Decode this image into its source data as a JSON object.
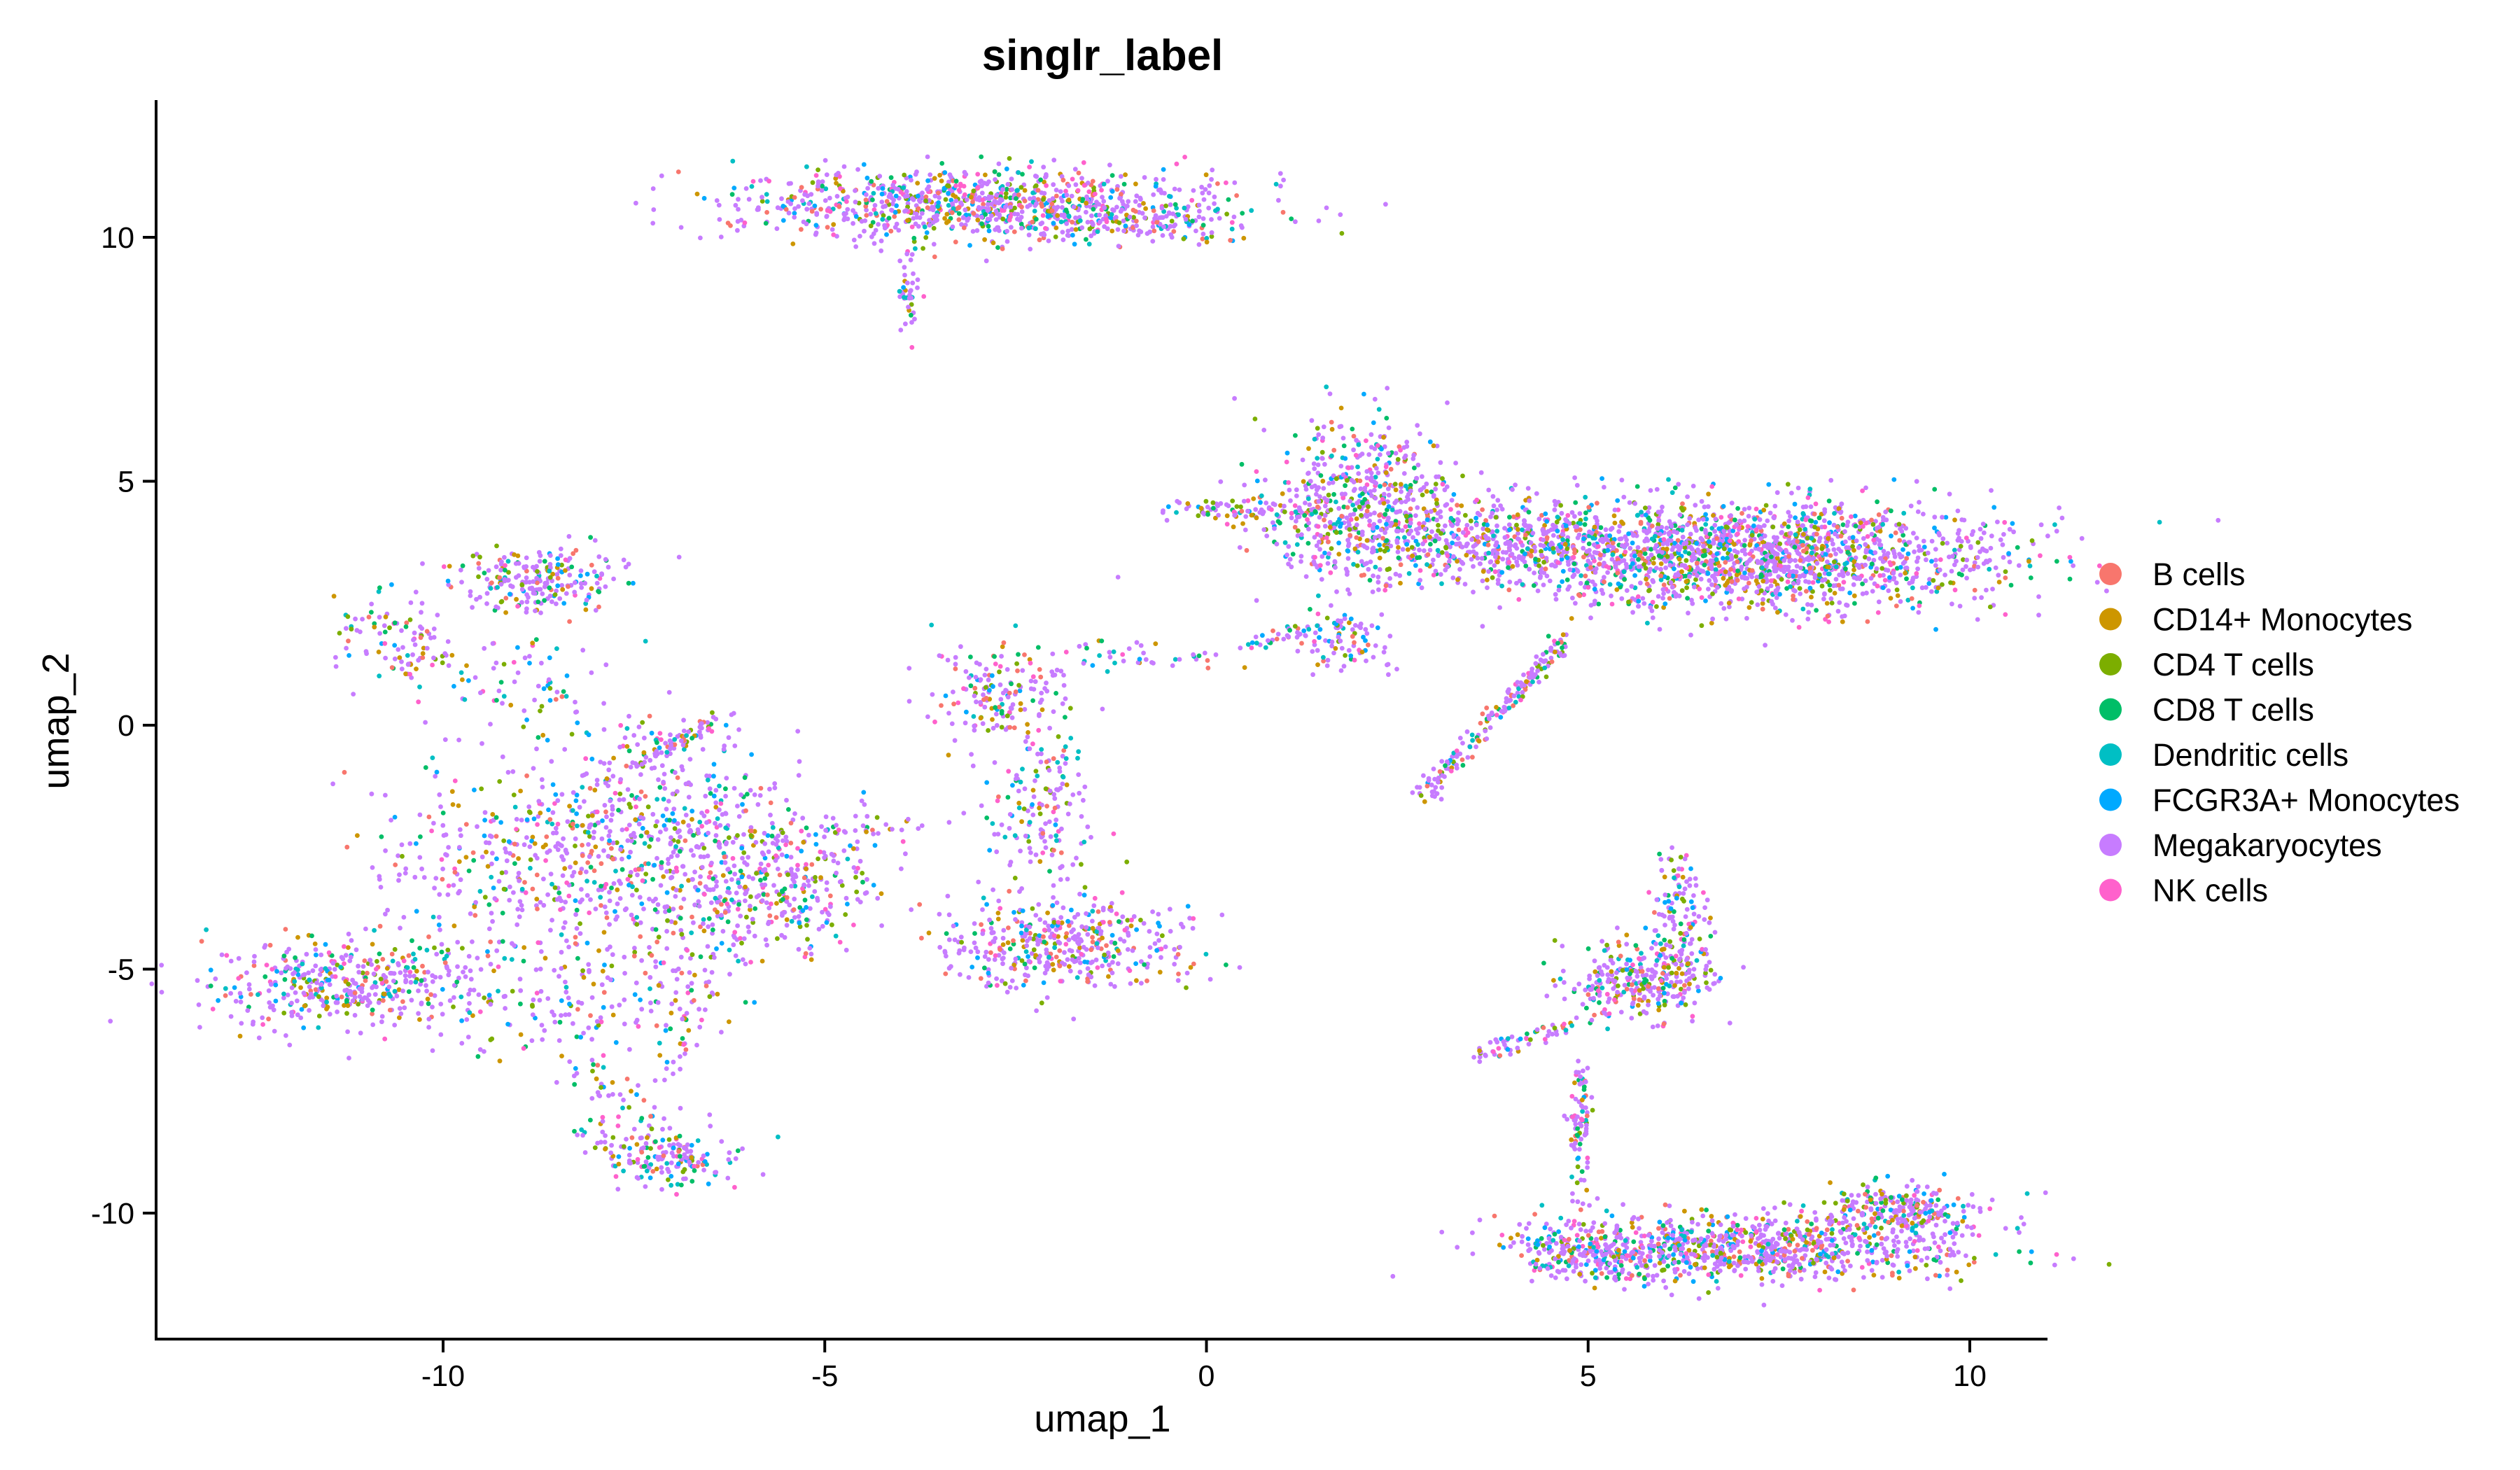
{
  "chart_data": {
    "type": "scatter",
    "title": "singlr_label",
    "xlabel": "umap_1",
    "ylabel": "umap_2",
    "xlim": [
      -14,
      11.5
    ],
    "ylim": [
      -12.5,
      12.8
    ],
    "x_ticks": [
      -10,
      -5,
      0,
      5,
      10
    ],
    "y_ticks": [
      -10,
      -5,
      0,
      5,
      10
    ],
    "x_tick_labels": [
      "-10",
      "-5",
      "0",
      "5",
      "10"
    ],
    "y_tick_labels": [
      "-10",
      "-5",
      "0",
      "5",
      "10"
    ],
    "grid": false,
    "legend_position": "right",
    "series": [
      {
        "name": "B cells",
        "color": "#F8766D"
      },
      {
        "name": "CD14+ Monocytes",
        "color": "#CD9600"
      },
      {
        "name": "CD4 T cells",
        "color": "#7CAE00"
      },
      {
        "name": "CD8 T cells",
        "color": "#00BE67"
      },
      {
        "name": "Dendritic cells",
        "color": "#00BFC4"
      },
      {
        "name": "FCGR3A+ Monocytes",
        "color": "#00A9FF"
      },
      {
        "name": "Megakaryocytes",
        "color": "#C77CFF"
      },
      {
        "name": "NK cells",
        "color": "#FF61CC"
      }
    ],
    "clusters": [
      {
        "cx": -3.0,
        "cy": 10.7,
        "sx": 1.6,
        "sy": 0.35,
        "n": 900
      },
      {
        "cx": -3.9,
        "cy": 9.0,
        "sx": 0.07,
        "sy": 0.5,
        "n": 40
      },
      {
        "cx": -1.2,
        "cy": 10.3,
        "sx": 0.9,
        "sy": 0.22,
        "n": 180
      },
      {
        "cx": 7.2,
        "cy": 3.5,
        "sx": 1.6,
        "sy": 0.55,
        "n": 1700
      },
      {
        "cx": 3.6,
        "cy": 3.8,
        "sx": 1.4,
        "sy": 0.45,
        "n": 700
      },
      {
        "cx": 2.0,
        "cy": 4.7,
        "sx": 0.6,
        "sy": 0.8,
        "n": 450
      },
      {
        "cx": 0.3,
        "cy": 4.45,
        "sx": 0.5,
        "sy": 0.08,
        "n": 70
      },
      {
        "cx": 1.8,
        "cy": 1.7,
        "sx": 0.3,
        "sy": 0.35,
        "n": 80
      },
      {
        "cx": 7.2,
        "cy": -10.7,
        "sx": 1.4,
        "sy": 0.35,
        "n": 900
      },
      {
        "cx": 9.1,
        "cy": -9.9,
        "sx": 0.5,
        "sy": 0.25,
        "n": 220
      },
      {
        "cx": 5.0,
        "cy": -10.8,
        "sx": 0.5,
        "sy": 0.25,
        "n": 200
      },
      {
        "cx": 4.9,
        "cy": -8.3,
        "sx": 0.07,
        "sy": 0.8,
        "n": 90
      },
      {
        "cx": 5.7,
        "cy": -5.2,
        "sx": 0.5,
        "sy": 0.4,
        "n": 320
      },
      {
        "cx": 6.2,
        "cy": -3.8,
        "sx": 0.18,
        "sy": 0.6,
        "n": 120
      },
      {
        "cx": -1.8,
        "cy": -4.5,
        "sx": 0.8,
        "sy": 0.45,
        "n": 420
      },
      {
        "cx": -2.7,
        "cy": 0.7,
        "sx": 0.45,
        "sy": 0.55,
        "n": 160
      },
      {
        "cx": -2.2,
        "cy": -1.8,
        "sx": 0.35,
        "sy": 1.0,
        "n": 170
      },
      {
        "cx": -1.0,
        "cy": 1.4,
        "sx": 0.8,
        "sy": 0.15,
        "n": 40
      },
      {
        "cx": -8.8,
        "cy": 3.0,
        "sx": 0.5,
        "sy": 0.35,
        "n": 230
      },
      {
        "cx": -10.5,
        "cy": 1.7,
        "sx": 0.5,
        "sy": 0.45,
        "n": 110
      },
      {
        "cx": -9.0,
        "cy": 1.0,
        "sx": 0.5,
        "sy": 0.6,
        "n": 60
      },
      {
        "cx": -6.8,
        "cy": -2.3,
        "sx": 1.1,
        "sy": 0.8,
        "n": 380
      },
      {
        "cx": -5.6,
        "cy": -3.3,
        "sx": 0.6,
        "sy": 0.6,
        "n": 260
      },
      {
        "cx": -8.6,
        "cy": -2.8,
        "sx": 1.1,
        "sy": 1.0,
        "n": 430
      },
      {
        "cx": -11.3,
        "cy": -5.3,
        "sx": 0.9,
        "sy": 0.45,
        "n": 420
      },
      {
        "cx": -8.5,
        "cy": -5.5,
        "sx": 1.0,
        "sy": 0.7,
        "n": 160
      },
      {
        "cx": -6.9,
        "cy": -4.8,
        "sx": 0.4,
        "sy": 1.2,
        "n": 120
      },
      {
        "cx": -7.1,
        "cy": -8.8,
        "sx": 0.45,
        "sy": 0.3,
        "n": 170
      },
      {
        "cx": -7.8,
        "cy": -7.6,
        "sx": 0.35,
        "sy": 0.6,
        "n": 60
      },
      {
        "cx": -7.3,
        "cy": -0.5,
        "sx": 0.6,
        "sy": 0.5,
        "n": 60
      }
    ],
    "strands": [
      {
        "x1": 0.5,
        "y1": 1.6,
        "x2": 1.8,
        "y2": 2.2,
        "n": 40
      },
      {
        "x1": 2.8,
        "y1": -1.5,
        "x2": 4.7,
        "y2": 1.8,
        "n": 180
      },
      {
        "x1": 3.5,
        "y1": -6.8,
        "x2": 5.0,
        "y2": -6.0,
        "n": 60
      },
      {
        "x1": -6.3,
        "y1": 0.2,
        "x2": -7.5,
        "y2": -0.8,
        "n": 60
      },
      {
        "x1": -5.2,
        "y1": -2.2,
        "x2": -3.2,
        "y2": -2.0,
        "n": 25
      }
    ]
  }
}
